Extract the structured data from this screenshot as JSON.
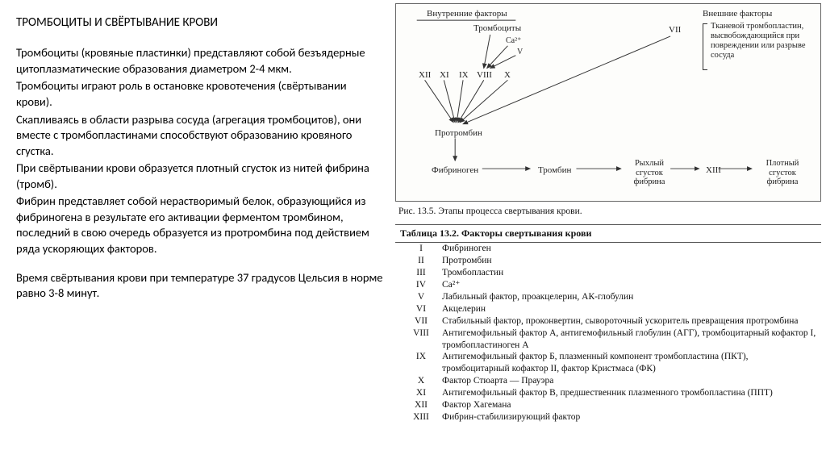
{
  "title": "ТРОМБОЦИТЫ И СВЁРТЫВАНИЕ КРОВИ",
  "paragraphs": [
    "Тромбоциты (кровяные пластинки) представляют собой безъядерные цитоплазматические образования диаметром 2-4 мкм.",
    "Тромбоциты играют роль в остановке кровотечения (свёртывании крови).",
    "Скапливаясь в области разрыва сосуда (агрегация тромбоцитов), они вместе с тромбопластинами способствуют образованию кровяного сгустка.",
    "При свёртывании крови образуется плотный сгусток из нитей фибрина (тромб).",
    "Фибрин представляет собой нерастворимый белок, образующийся из фибриногена в результате его активации ферментом тромбином, последний в свою очередь образуется из протромбина под действием ряда ускоряющих факторов.",
    "",
    " Время свёртывания крови при температуре 37 градусов Цельсия в норме равно 3-8 минут."
  ],
  "diagram": {
    "internal_label": "Внутренние факторы",
    "external_label": "Внешние факторы",
    "thrombocytes": "Тромбоциты",
    "ca": "Ca²⁺",
    "v": "V",
    "factors_left": [
      "XII",
      "XI",
      "IX",
      "VIII",
      "X"
    ],
    "vii": "VII",
    "external_text": "Тканевой тромбопластин, высвобождающийся при повреждении или разрыве сосуда",
    "prothrombin": "Протромбин",
    "fibrinogen": "Фибриноген",
    "thrombin": "Тромбин",
    "loose_clot": "Рыхлый сгусток фибрина",
    "xiii": "XIII",
    "dense_clot": "Плотный сгусток фибрина",
    "caption": "Рис. 13.5. Этапы процесса свертывания крови."
  },
  "table": {
    "title": "Таблица 13.2. Факторы свертывания крови",
    "rows": [
      {
        "n": "I",
        "d": "Фибриноген"
      },
      {
        "n": "II",
        "d": "Протромбин"
      },
      {
        "n": "III",
        "d": "Тромбопластин"
      },
      {
        "n": "IV",
        "d": "Ca²⁺"
      },
      {
        "n": "V",
        "d": "Лабильный фактор, проакцелерин, АК-глобулин"
      },
      {
        "n": "VI",
        "d": "Акцелерин"
      },
      {
        "n": "VII",
        "d": "Стабильный фактор, проконвертин, сывороточный ускоритель превращения протромбина"
      },
      {
        "n": "VIII",
        "d": "Антигемофильный фактор А, антигемофильный глобулин (АГГ), тромбоцитарный кофактор I, тромбопластиноген А"
      },
      {
        "n": "IX",
        "d": "Антигемофильный фактор Б, плазменный компонент тромбопластина (ПКТ), тромбоцитарный кофактор II, фактор Кристмаса (ФК)"
      },
      {
        "n": "X",
        "d": "Фактор Стюарта — Прауэра"
      },
      {
        "n": "XI",
        "d": "Антигемофильный фактор В, предшественник плазменного тромбопластина (ППТ)"
      },
      {
        "n": "XII",
        "d": "Фактор Хагемана"
      },
      {
        "n": "XIII",
        "d": "Фибрин-стабилизирующий фактор"
      }
    ]
  },
  "colors": {
    "text": "#000000",
    "line": "#333333",
    "border": "#666666",
    "bg": "#ffffff"
  }
}
